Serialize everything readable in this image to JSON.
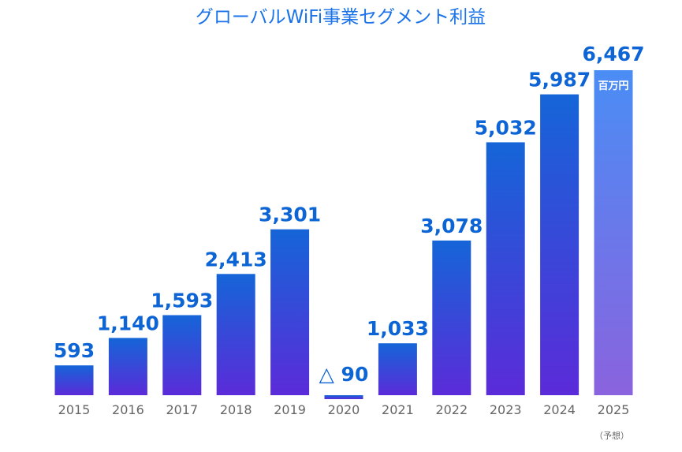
{
  "chart_data": {
    "type": "bar",
    "title": "グローバルWiFi事業セグメント利益",
    "unit": "百万円",
    "categories": [
      "2015",
      "2016",
      "2017",
      "2018",
      "2019",
      "2020",
      "2021",
      "2022",
      "2023",
      "2024",
      "2025"
    ],
    "values": [
      593,
      1140,
      1593,
      2413,
      3301,
      -90,
      1033,
      3078,
      5032,
      5987,
      6467
    ],
    "value_labels": [
      "593",
      "1,140",
      "1,593",
      "2,413",
      "3,301",
      "△ 90",
      "1,033",
      "3,078",
      "5,032",
      "5,987",
      "6,467"
    ],
    "forecast_note": "（予想）",
    "forecast_category": "2025",
    "ylim": [
      -90,
      6467
    ],
    "xlabel": "",
    "ylabel": "",
    "grid": false,
    "legend": "none",
    "colors": {
      "title": "#1a73e8",
      "value_text": "#0d64d4",
      "year_text": "#666666",
      "bar_top": "#1565d8",
      "bar_bottom": "#5b2bd9",
      "forecast_top": "#4a8df5",
      "forecast_bottom": "#8a63de",
      "unit_text": "#ffffff"
    }
  }
}
